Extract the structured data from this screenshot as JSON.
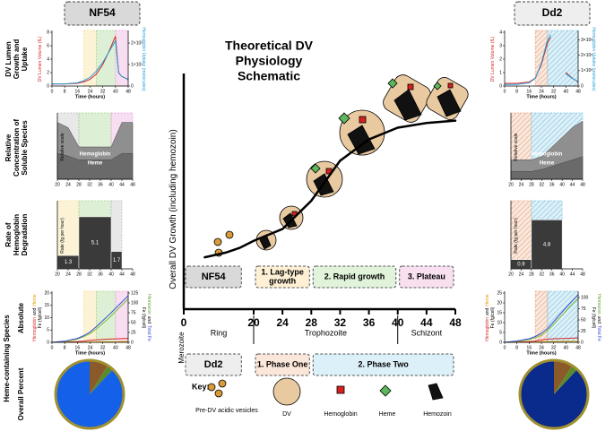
{
  "strains": [
    "NF54",
    "Dd2"
  ],
  "row_labels": [
    [
      "DV Lumen",
      "Growth and",
      "Uptake"
    ],
    [
      "Relative",
      "Concentration of",
      "Soluble Species"
    ],
    [
      "Rate of",
      "Hemoglobin",
      "Degradation"
    ],
    [
      "Heme-containing Species"
    ],
    [
      "Absolute"
    ],
    [
      "Overall Percent"
    ]
  ],
  "key": {
    "title": "Key:",
    "items": [
      "Pre-DV acidic vesicles",
      "DV",
      "Hemoglobin",
      "Heme",
      "Hemozoin"
    ]
  },
  "chart_data": [
    {
      "type": "line",
      "title": [
        "Theoretical DV",
        "Physiology",
        "Schematic"
      ],
      "ylabel": [
        [
          {
            "text": "Overall DV Growth (including hemozoin)",
            "color": "#000000"
          }
        ]
      ],
      "x": [
        6,
        12,
        16,
        20,
        24,
        28,
        32,
        36,
        40,
        44,
        48
      ],
      "series": [
        {
          "color": "#000000",
          "values": [
            2.2,
            2.4,
            2.6,
            2.9,
            3.4,
            4.6,
            6.3,
            7.2,
            7.7,
            7.9,
            8.0
          ]
        }
      ],
      "xlim": [
        0,
        48
      ],
      "ylim": [
        0,
        10
      ],
      "xticks": [
        0,
        20,
        24,
        28,
        32,
        36,
        40,
        44,
        48
      ],
      "phase_rows": [
        [
          {
            "label": [
              "NF54"
            ],
            "from": 0,
            "to": 17,
            "color": "#d9d9d9"
          },
          {
            "label": [
              "1. Lag-type",
              "growth"
            ],
            "from": 20,
            "to": 28,
            "color": "#fdf0d5"
          },
          {
            "label": [
              "2. Rapid growth"
            ],
            "from": 28,
            "to": 40,
            "color": "#e1f3da"
          },
          {
            "label": [
              "3. Plateau"
            ],
            "from": 40,
            "to": 48,
            "color": "#f8e0f1"
          }
        ],
        [
          {
            "label": [
              "Dd2"
            ],
            "from": 0,
            "to": 17,
            "color": "#eeeeee"
          },
          {
            "label": [
              "1. Phase One"
            ],
            "from": 20,
            "to": 28,
            "color": "#fbe6da"
          },
          {
            "label": [
              "2. Phase Two"
            ],
            "from": 28,
            "to": 48,
            "color": "#dcf0f9"
          }
        ]
      ],
      "stages": [
        {
          "label": "Ring",
          "from": 0,
          "to": 20
        },
        {
          "label": "Trophozoite",
          "from": 20,
          "to": 40
        },
        {
          "label": "Schizont",
          "from": 40,
          "to": 48
        }
      ],
      "boundary_label": "Merozoite"
    },
    {
      "type": "line",
      "xlabel": "Time (hours)",
      "ylabel": [
        [
          {
            "text": "DV Lumen Volume (fL)",
            "color": "#d62728"
          }
        ]
      ],
      "y2label": [
        [
          {
            "text": "Hemoglobin Uptake (molecules)",
            "color": "#2a9fd6"
          }
        ]
      ],
      "x": [
        0,
        8,
        16,
        20,
        24,
        28,
        32,
        36,
        40,
        42,
        44,
        48
      ],
      "series": [
        {
          "color": "#d62728",
          "values": [
            0.3,
            0.3,
            0.4,
            0.6,
            1.0,
            1.8,
            3.2,
            5.2,
            7.4,
            2.0,
            1.4,
            1.0
          ]
        },
        {
          "color": "#2a9fd6",
          "axis": "y2",
          "values": [
            10000,
            10000,
            15000,
            25000,
            40000,
            70000,
            110000,
            160000,
            210000,
            60000,
            45000,
            30000
          ]
        }
      ],
      "xlim": [
        0,
        48
      ],
      "ylim": [
        0,
        8
      ],
      "y2lim": [
        0,
        250000
      ],
      "xticks": [
        0,
        8,
        16,
        24,
        32,
        40,
        48
      ],
      "yticks": [
        0,
        2,
        4,
        6,
        8
      ],
      "y2ticks": [
        0,
        {
          "value": 100000,
          "label": "1×10⁵"
        },
        {
          "value": 200000,
          "label": "2×10⁵"
        }
      ],
      "shading": [
        {
          "from": 20,
          "to": 28,
          "color": "#f5d98a"
        },
        {
          "from": 28,
          "to": 40,
          "color": "#9fd48a"
        },
        {
          "from": 40,
          "to": 48,
          "color": "#e7a0d8"
        }
      ]
    },
    {
      "type": "line",
      "xlabel": "Time (hours)",
      "ylabel": [
        [
          {
            "text": "DV Lumen Volume (fL)",
            "color": "#d62728"
          }
        ]
      ],
      "y2label": [
        [
          {
            "text": "Hemoglobin Uptake (molecules)",
            "color": "#2a9fd6"
          }
        ]
      ],
      "x": [
        0,
        8,
        16,
        20,
        24,
        28,
        30,
        36,
        40,
        44,
        48
      ],
      "series": [
        {
          "color": "#d62728",
          "values": [
            0.2,
            0.2,
            0.3,
            0.6,
            1.6,
            3.2,
            3.6,
            null,
            1.0,
            0.6,
            0.3
          ]
        },
        {
          "color": "#2a9fd6",
          "axis": "y2",
          "values": [
            10000,
            10000,
            20000,
            50000,
            150000,
            300000,
            330000,
            null,
            80000,
            50000,
            30000
          ]
        }
      ],
      "xlim": [
        0,
        48
      ],
      "ylim": [
        0,
        4
      ],
      "y2lim": [
        0,
        350000
      ],
      "xticks": [
        0,
        8,
        16,
        24,
        32,
        40,
        48
      ],
      "yticks": [
        0,
        1,
        2,
        3,
        4
      ],
      "y2ticks": [
        0,
        {
          "value": 100000,
          "label": "1×10⁵"
        },
        {
          "value": 200000,
          "label": "2×10⁵"
        },
        {
          "value": 300000,
          "label": "3×10⁵"
        }
      ],
      "shading": [
        {
          "from": 20,
          "to": 28,
          "color": "#e9a27a",
          "hatched": true
        },
        {
          "from": 28,
          "to": 48,
          "color": "#7cc3e0",
          "hatched": true
        }
      ]
    },
    {
      "type": "area",
      "ylabel": [
        [
          {
            "text": "Relative scale",
            "color": "#000000"
          }
        ]
      ],
      "x": [
        20,
        24,
        28,
        32,
        36,
        40,
        44,
        48
      ],
      "series": [
        {
          "name": "Hemoglobin",
          "color": "#8f8f8f",
          "values": [
            0.88,
            0.8,
            0.5,
            0.5,
            0.5,
            0.5,
            0.88,
            0.88
          ]
        },
        {
          "name": "Heme",
          "color": "#6a6a6a",
          "values": [
            0.4,
            0.36,
            0.3,
            0.3,
            0.3,
            0.3,
            0.4,
            0.4
          ]
        }
      ],
      "xlim": [
        20,
        48
      ],
      "ylim": [
        0,
        1
      ],
      "xticks": [
        20,
        24,
        28,
        32,
        36,
        40,
        44,
        48
      ],
      "shading": [
        {
          "from": 20,
          "to": 28,
          "color": "#bdbdbd"
        },
        {
          "from": 28,
          "to": 40,
          "color": "#9fd48a"
        },
        {
          "from": 40,
          "to": 48,
          "color": "#e7a0d8"
        }
      ]
    },
    {
      "type": "area",
      "ylabel": [
        [
          {
            "text": "Relative scale",
            "color": "#000000"
          }
        ]
      ],
      "x": [
        20,
        24,
        28,
        32,
        36,
        40,
        44,
        48
      ],
      "series": [
        {
          "name": "Hemoglobin",
          "color": "#8f8f8f",
          "values": [
            0.3,
            0.3,
            0.3,
            0.35,
            0.5,
            0.65,
            0.8,
            0.9
          ]
        },
        {
          "name": "Heme",
          "color": "#6a6a6a",
          "values": [
            0.12,
            0.12,
            0.12,
            0.15,
            0.2,
            0.25,
            0.3,
            0.35
          ]
        }
      ],
      "xlim": [
        20,
        48
      ],
      "ylim": [
        0,
        1
      ],
      "xticks": [
        20,
        24,
        28,
        32,
        36,
        40,
        44,
        48
      ],
      "shading": [
        {
          "from": 20,
          "to": 28,
          "color": "#e9a27a",
          "hatched": true
        },
        {
          "from": 28,
          "to": 48,
          "color": "#7cc3e0",
          "hatched": true
        }
      ]
    },
    {
      "type": "histogram",
      "ylabel": [
        [
          {
            "text": "Rate (fg per hour)",
            "color": "#000000"
          }
        ]
      ],
      "bins": [
        20,
        28,
        40,
        44
      ],
      "counts": [
        1.3,
        5.1,
        1.7
      ],
      "color": "#3a3a3a",
      "xlim": [
        20,
        48
      ],
      "ylim": [
        0,
        6.5
      ],
      "xticks": [
        20,
        24,
        28,
        32,
        36,
        40,
        44,
        48
      ],
      "shading": [
        {
          "from": 20,
          "to": 28,
          "color": "#f5d98a"
        },
        {
          "from": 28,
          "to": 40,
          "color": "#9fd48a"
        },
        {
          "from": 40,
          "to": 44,
          "color": "#bdbdbd"
        }
      ]
    },
    {
      "type": "histogram",
      "ylabel": [
        [
          {
            "text": "Rate (fg per hour)",
            "color": "#000000"
          }
        ]
      ],
      "bins": [
        20,
        28,
        40
      ],
      "counts": [
        0.9,
        4.8
      ],
      "color": "#3a3a3a",
      "xlim": [
        20,
        48
      ],
      "ylim": [
        0,
        6.5
      ],
      "xticks": [
        20,
        24,
        28,
        32,
        36,
        40,
        44,
        48
      ],
      "shading": [
        {
          "from": 20,
          "to": 28,
          "color": "#e9a27a",
          "hatched": true
        },
        {
          "from": 28,
          "to": 40,
          "color": "#7cc3e0",
          "hatched": true
        }
      ]
    },
    {
      "type": "line",
      "xlabel": "Time (hours)",
      "ylabel": [
        [
          {
            "text": "Hemoglobin",
            "color": "#d62728"
          },
          {
            "text": "and",
            "color": "#000000"
          },
          {
            "text": "Heme",
            "color": "#e0a000"
          }
        ],
        [
          {
            "text": "Fe (fg/cell)",
            "color": "#000000"
          }
        ]
      ],
      "y2label": [
        [
          {
            "text": "Hemozoin",
            "color": "#5aa02c"
          },
          {
            "text": "and",
            "color": "#000000"
          },
          {
            "text": "Total Fe",
            "color": "#3a4fd0"
          }
        ],
        [
          {
            "text": "Fe (fg/cell)",
            "color": "#000000"
          }
        ]
      ],
      "x": [
        0,
        8,
        16,
        20,
        24,
        28,
        32,
        36,
        40,
        44,
        48
      ],
      "series": [
        {
          "color": "#d62728",
          "values": [
            0,
            0.1,
            0.3,
            0.5,
            0.8,
            1.0,
            1.2,
            1.3,
            1.4,
            1.5,
            1.6
          ]
        },
        {
          "color": "#e0a000",
          "values": [
            0,
            0,
            0,
            0,
            0.1,
            0.1,
            0.2,
            0.2,
            0.2,
            0.3,
            0.3
          ]
        },
        {
          "color": "#7cbf3a",
          "axis": "y2",
          "values": [
            0,
            2,
            8,
            14,
            22,
            34,
            48,
            62,
            78,
            94,
            110
          ]
        },
        {
          "color": "#3a4fd0",
          "axis": "y2",
          "values": [
            0,
            3,
            10,
            17,
            26,
            40,
            55,
            70,
            86,
            102,
            118
          ]
        }
      ],
      "xlim": [
        0,
        48
      ],
      "ylim": [
        0,
        20
      ],
      "y2lim": [
        0,
        125
      ],
      "xticks": [
        0,
        8,
        16,
        24,
        32,
        40,
        48
      ],
      "yticks": [
        0,
        5,
        10,
        15,
        20
      ],
      "y2ticks": [
        0,
        25,
        50,
        75,
        100,
        125
      ],
      "shading": [
        {
          "from": 20,
          "to": 28,
          "color": "#f5d98a"
        },
        {
          "from": 28,
          "to": 40,
          "color": "#9fd48a"
        },
        {
          "from": 40,
          "to": 48,
          "color": "#e7a0d8"
        }
      ]
    },
    {
      "type": "line",
      "xlabel": "Time (hours)",
      "ylabel": [
        [
          {
            "text": "Hemoglobin",
            "color": "#d62728"
          },
          {
            "text": "and",
            "color": "#000000"
          },
          {
            "text": "Heme",
            "color": "#e0a000"
          }
        ],
        [
          {
            "text": "Fe (fg/cell)",
            "color": "#000000"
          }
        ]
      ],
      "y2label": [
        [
          {
            "text": "Hemozoin",
            "color": "#5aa02c"
          },
          {
            "text": "and",
            "color": "#000000"
          },
          {
            "text": "Total Fe",
            "color": "#3a4fd0"
          }
        ],
        [
          {
            "text": "Fe (fg/cell)",
            "color": "#000000"
          }
        ]
      ],
      "x": [
        0,
        8,
        16,
        20,
        24,
        28,
        32,
        36,
        40,
        44,
        48
      ],
      "series": [
        {
          "color": "#d62728",
          "values": [
            0,
            0.1,
            0.4,
            0.7,
            1.2,
            1.6,
            1.8,
            1.9,
            2.0,
            2.1,
            2.2
          ]
        },
        {
          "color": "#e0a000",
          "values": [
            0,
            0,
            0,
            0.1,
            0.2,
            0.3,
            0.4,
            0.4,
            0.5,
            0.5,
            0.5
          ]
        },
        {
          "color": "#7cbf3a",
          "axis": "y2",
          "values": [
            0,
            2,
            6,
            10,
            16,
            26,
            40,
            55,
            70,
            85,
            98
          ]
        },
        {
          "color": "#3a4fd0",
          "axis": "y2",
          "values": [
            0,
            3,
            8,
            13,
            20,
            31,
            46,
            62,
            77,
            92,
            106
          ]
        }
      ],
      "xlim": [
        0,
        48
      ],
      "ylim": [
        0,
        25
      ],
      "y2lim": [
        0,
        110
      ],
      "xticks": [
        0,
        8,
        16,
        24,
        32,
        40,
        48
      ],
      "yticks": [
        0,
        5,
        10,
        15,
        20,
        25
      ],
      "y2ticks": [
        0,
        25,
        50,
        75,
        100
      ],
      "shading": [
        {
          "from": 20,
          "to": 28,
          "color": "#e9a27a",
          "hatched": true
        },
        {
          "from": 28,
          "to": 48,
          "color": "#7cc3e0",
          "hatched": true
        }
      ]
    },
    {
      "type": "pie",
      "categories": [
        null,
        null,
        null
      ],
      "values": [
        9,
        3,
        88
      ],
      "colors": [
        "#8b5a2b",
        "#5a8a2a",
        "#1560e8"
      ],
      "border_color": "#a09030"
    },
    {
      "type": "pie",
      "categories": [
        null,
        null,
        null
      ],
      "values": [
        9,
        3,
        88
      ],
      "colors": [
        "#8b5a2b",
        "#5a8a2a",
        "#0a2a8c"
      ],
      "border_color": "#a09030"
    }
  ]
}
